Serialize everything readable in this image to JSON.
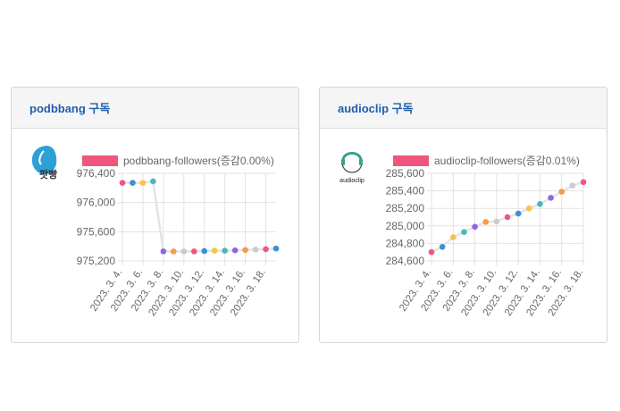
{
  "cards": [
    {
      "title": "podbbang 구독",
      "logo": {
        "name": "podbbang-logo-icon",
        "text": "팟빵",
        "color": "#2ea0d6"
      },
      "legend_color": "#f0567b",
      "chart_data": {
        "type": "line",
        "series": [
          {
            "name": "podbbang-followers(증감0.00%)",
            "values": [
              976270,
              976270,
              976270,
              976290,
              975330,
              975330,
              975330,
              975330,
              975335,
              975340,
              975340,
              975345,
              975350,
              975355,
              975360,
              975370
            ]
          }
        ],
        "x": [
          "2023. 3. 4.",
          "2023. 3. 5.",
          "2023. 3. 6.",
          "2023. 3. 7.",
          "2023. 3. 8.",
          "2023. 3. 9.",
          "2023. 3. 10.",
          "2023. 3. 11.",
          "2023. 3. 12.",
          "2023. 3. 13.",
          "2023. 3. 14.",
          "2023. 3. 15.",
          "2023. 3. 16.",
          "2023. 3. 17.",
          "2023. 3. 18.",
          "2023. 3. 19."
        ],
        "x_tick_labels": [
          "2023. 3. 4.",
          "2023. 3. 6.",
          "2023. 3. 8.",
          "2023. 3. 10.",
          "2023. 3. 12.",
          "2023. 3. 14.",
          "2023. 3. 16.",
          "2023. 3. 18."
        ],
        "y_ticks": [
          976400,
          976000,
          975600,
          975200
        ],
        "y_tick_labels": [
          "976,400",
          "976,000",
          "975,600",
          "975,200"
        ],
        "ylim": [
          975200,
          976400
        ],
        "grid": true,
        "legend_position": "top"
      }
    },
    {
      "title": "audioclip 구독",
      "logo": {
        "name": "audioclip-logo-icon",
        "text": "audioclip",
        "color": "#3aa08f"
      },
      "legend_color": "#f0567b",
      "chart_data": {
        "type": "line",
        "series": [
          {
            "name": "audioclip-followers(증감0.01%)",
            "values": [
              284700,
              284760,
              284870,
              284930,
              284990,
              285045,
              285050,
              285100,
              285140,
              285200,
              285250,
              285320,
              285390,
              285460,
              285500
            ]
          }
        ],
        "x": [
          "2023. 3. 4.",
          "2023. 3. 5.",
          "2023. 3. 6.",
          "2023. 3. 7.",
          "2023. 3. 8.",
          "2023. 3. 9.",
          "2023. 3. 10.",
          "2023. 3. 11.",
          "2023. 3. 12.",
          "2023. 3. 13.",
          "2023. 3. 14.",
          "2023. 3. 15.",
          "2023. 3. 16.",
          "2023. 3. 17.",
          "2023. 3. 18."
        ],
        "x_tick_labels": [
          "2023. 3. 4.",
          "2023. 3. 6.",
          "2023. 3. 8.",
          "2023. 3. 10.",
          "2023. 3. 12.",
          "2023. 3. 14.",
          "2023. 3. 16.",
          "2023. 3. 18."
        ],
        "y_ticks": [
          285600,
          285400,
          285200,
          285000,
          284800,
          284600
        ],
        "y_tick_labels": [
          "285,600",
          "285,400",
          "285,200",
          "285,000",
          "284,800",
          "284,600"
        ],
        "ylim": [
          284600,
          285600
        ],
        "grid": true,
        "legend_position": "top"
      }
    }
  ],
  "point_colors": [
    "#f0567b",
    "#3d8fd6",
    "#f7c14a",
    "#4bb8b8",
    "#8e65e8",
    "#f79a45",
    "#c9cbcf"
  ]
}
